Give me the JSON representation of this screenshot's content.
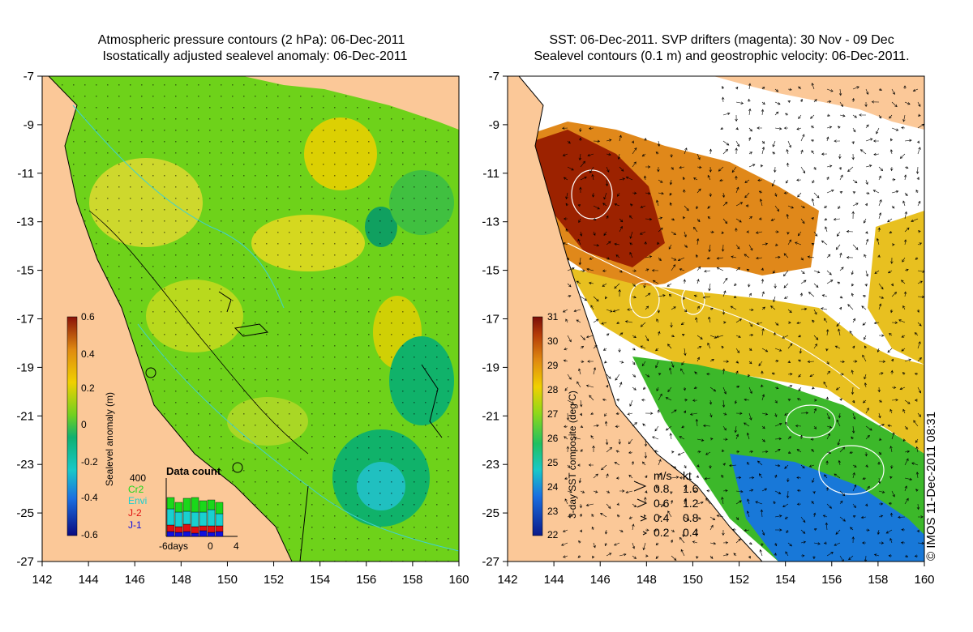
{
  "titles": {
    "left_line1": "Atmospheric pressure contours (2 hPa): 06-Dec-2011",
    "left_line2": "Isostatically adjusted sealevel anomaly: 06-Dec-2011",
    "right_line1": "SST: 06-Dec-2011. SVP drifters (magenta): 30 Nov - 09 Dec",
    "right_line2": "Sealevel contours (0.1 m) and geostrophic velocity: 06-Dec-2011."
  },
  "axes": {
    "lat_ticks": [
      "-7",
      "-9",
      "-11",
      "-13",
      "-15",
      "-17",
      "-19",
      "-21",
      "-23",
      "-25",
      "-27"
    ],
    "lon_ticks": [
      "142",
      "144",
      "146",
      "148",
      "150",
      "152",
      "154",
      "156",
      "158",
      "160"
    ]
  },
  "left_colorbar": {
    "label": "Sealevel anomaly (m)",
    "ticks": [
      "0.6",
      "0.4",
      "0.2",
      "0",
      "-0.2",
      "-0.4",
      "-0.6"
    ]
  },
  "right_colorbar": {
    "label": "3-day SST composite (deg C)",
    "ticks": [
      "31",
      "30",
      "29",
      "28",
      "27",
      "26",
      "25",
      "24",
      "23",
      "22"
    ]
  },
  "data_count": {
    "title": "Data count",
    "ymax": "400",
    "sat_cr2": "Cr2",
    "sat_envi": "Envi",
    "sat_j2": "J-2",
    "sat_j1": "J-1",
    "x_start": "-6days",
    "x_zero": "0",
    "x_end": "4"
  },
  "velocity_legend": {
    "unit_ms": "m/s",
    "unit_kt": "kt",
    "rows": [
      {
        "ms": "0.8",
        "kt": "1.6"
      },
      {
        "ms": "0.6",
        "kt": "1.2"
      },
      {
        "ms": "0.4",
        "kt": "0.8"
      },
      {
        "ms": "0.2",
        "kt": "0.4"
      }
    ]
  },
  "credit": "© IMOS 11-Dec-2011 08:31",
  "colors": {
    "land": "#fbc898",
    "ocean_mid": "#6ed21a",
    "ocean_high": "#e8d000",
    "ocean_low": "#10b26a",
    "sst_hot": "#9c2200",
    "sst_warm": "#e0881a",
    "sst_mid": "#3cb82a",
    "sst_cool": "#1878d8"
  }
}
